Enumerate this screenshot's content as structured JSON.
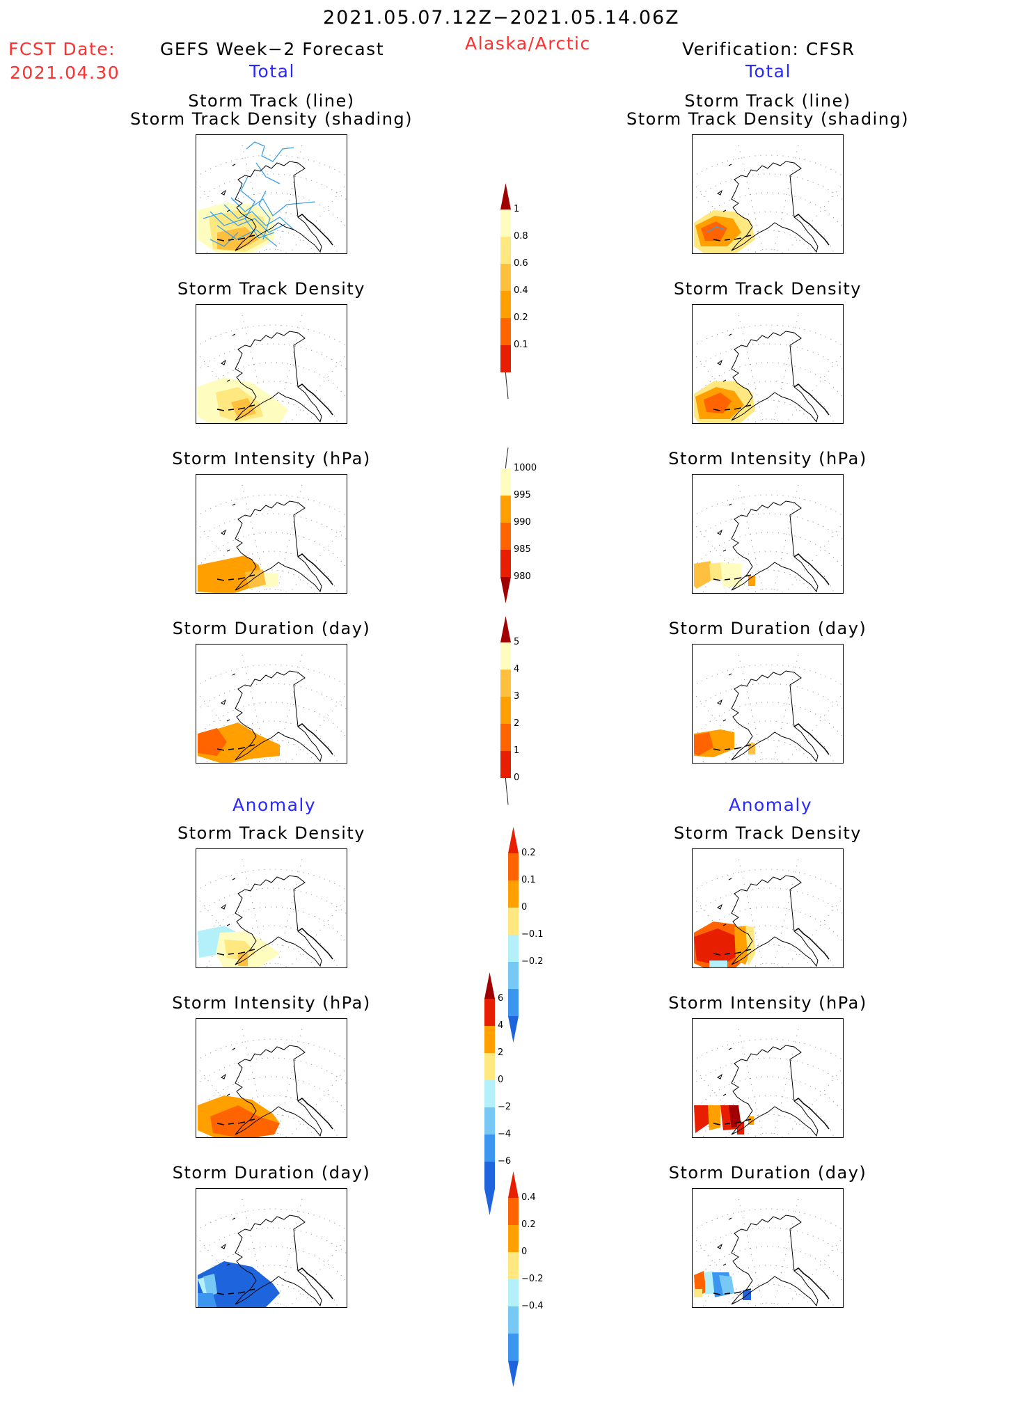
{
  "header": {
    "date_range": "2021.05.07.12Z−2021.05.14.06Z",
    "region": "Alaska/Arctic",
    "fcst_label": "FCST Date:",
    "fcst_date": "2021.04.30",
    "left_title": "GEFS Week−2 Forecast",
    "right_title": "Verification: CFSR",
    "total_label": "Total",
    "anomaly_label": "Anomaly"
  },
  "panels": {
    "track_line": "Storm Track (line)",
    "track_shading": "Storm Track Density (shading)",
    "density": "Storm Track Density",
    "intensity": "Storm Intensity (hPa)",
    "duration": "Storm Duration (day)"
  },
  "colorbars": [
    {
      "name": "density-total",
      "labels": [
        "1",
        "0.8",
        "0.6",
        "0.4",
        "0.2",
        "0.1"
      ]
    },
    {
      "name": "intensity-total",
      "labels": [
        "1000",
        "995",
        "990",
        "985",
        "980"
      ]
    },
    {
      "name": "duration-total",
      "labels": [
        "5",
        "4",
        "3",
        "2",
        "1",
        "0"
      ]
    },
    {
      "name": "density-anomaly",
      "labels": [
        "0.2",
        "0.1",
        "0",
        "−0.1",
        "−0.2"
      ]
    },
    {
      "name": "intensity-anomaly",
      "labels": [
        "6",
        "4",
        "2",
        "0",
        "−2",
        "−4",
        "−6"
      ]
    },
    {
      "name": "duration-anomaly",
      "labels": [
        "0.4",
        "0.2",
        "0",
        "−0.2",
        "−0.4"
      ]
    }
  ],
  "colors": {
    "c1": "#fffcc0",
    "c2": "#ffe880",
    "c3": "#ffc040",
    "c4": "#ffa000",
    "c5": "#ff6400",
    "c6": "#e81e00",
    "c7": "#a00000",
    "b1": "#b4f0fa",
    "b2": "#78c8f5",
    "b3": "#3c96f0",
    "b4": "#1e64dc",
    "track": "#3ca0e6"
  }
}
